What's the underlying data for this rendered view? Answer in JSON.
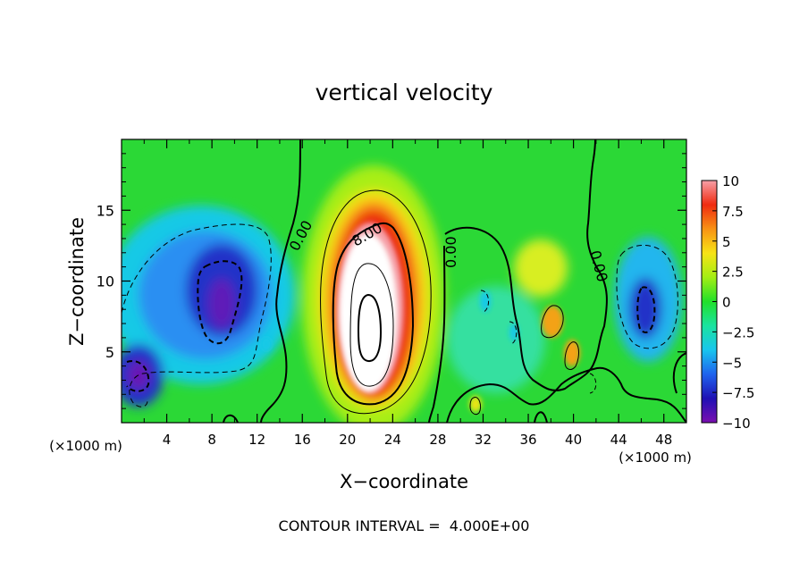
{
  "chart_data": {
    "type": "heatmap",
    "title": "vertical velocity",
    "xlabel": "X−coordinate",
    "ylabel": "Z−coordinate",
    "x_unit_label": "(×1000 m)",
    "x_unit_label_right": "(×1000 m)",
    "footer": "CONTOUR INTERVAL =  4.000E+00",
    "xlim": [
      0,
      50
    ],
    "ylim": [
      0,
      20
    ],
    "x_ticks": [
      "4",
      "8",
      "12",
      "16",
      "20",
      "24",
      "28",
      "32",
      "36",
      "40",
      "44",
      "48"
    ],
    "y_ticks": [
      "5",
      "10",
      "15"
    ],
    "colorbar": {
      "ticks": [
        "10",
        "7.5",
        "5",
        "2.5",
        "0",
        "−2.5",
        "−5",
        "−7.5",
        "−10"
      ],
      "range": [
        -10,
        10
      ],
      "colors": [
        "#7a0fb0",
        "#1f10b4",
        "#1f63ee",
        "#18c5ee",
        "#1ae3a0",
        "#21e02a",
        "#a3ee14",
        "#f7e316",
        "#f89214",
        "#f02b10",
        "#f7a0a8"
      ]
    },
    "contour_labels": [
      "0.00",
      "8.00",
      "0.00",
      "0.00"
    ],
    "contour_interval": 4.0,
    "features": [
      {
        "kind": "updraft",
        "x": 22,
        "z": 9,
        "max": 14,
        "note": "core exceeds colorbar max (white)"
      },
      {
        "kind": "downdraft",
        "x": 9,
        "z": 9,
        "min": -9
      },
      {
        "kind": "downdraft",
        "x": 1.5,
        "z": 3.5,
        "min": -9
      },
      {
        "kind": "downdraft",
        "x": 46,
        "z": 8,
        "min": -8
      },
      {
        "kind": "updraft",
        "x": 38.5,
        "z": 7.5,
        "max": 5
      },
      {
        "kind": "updraft",
        "x": 39.8,
        "z": 5,
        "max": 5
      }
    ]
  }
}
